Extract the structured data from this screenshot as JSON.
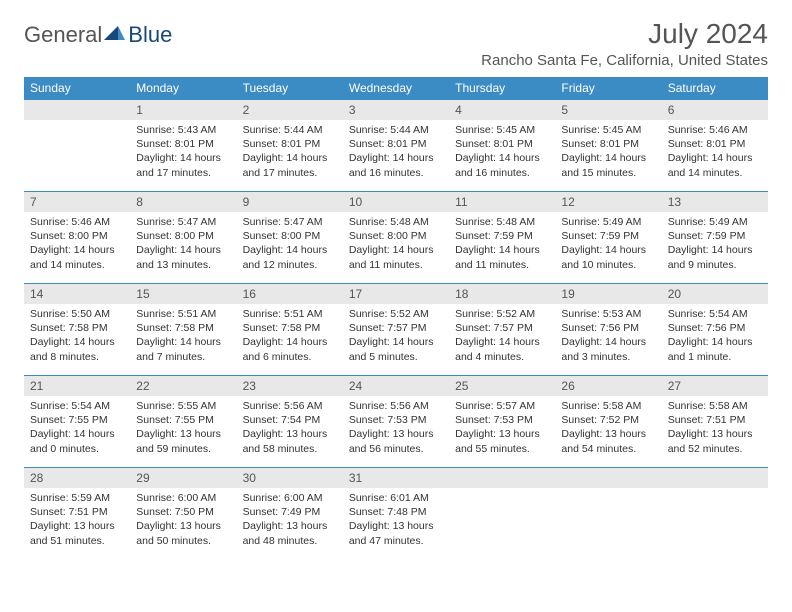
{
  "logo": {
    "text1": "General",
    "text2": "Blue"
  },
  "title": "July 2024",
  "location": "Rancho Santa Fe, California, United States",
  "colors": {
    "header_bg": "#3b8bc4",
    "header_text": "#ffffff",
    "daynum_bg": "#e8e8e8",
    "border": "#3b8bc4",
    "text": "#333333"
  },
  "weekdays": [
    "Sunday",
    "Monday",
    "Tuesday",
    "Wednesday",
    "Thursday",
    "Friday",
    "Saturday"
  ],
  "grid": [
    [
      {
        "n": "",
        "t": ""
      },
      {
        "n": "1",
        "t": "Sunrise: 5:43 AM\nSunset: 8:01 PM\nDaylight: 14 hours and 17 minutes."
      },
      {
        "n": "2",
        "t": "Sunrise: 5:44 AM\nSunset: 8:01 PM\nDaylight: 14 hours and 17 minutes."
      },
      {
        "n": "3",
        "t": "Sunrise: 5:44 AM\nSunset: 8:01 PM\nDaylight: 14 hours and 16 minutes."
      },
      {
        "n": "4",
        "t": "Sunrise: 5:45 AM\nSunset: 8:01 PM\nDaylight: 14 hours and 16 minutes."
      },
      {
        "n": "5",
        "t": "Sunrise: 5:45 AM\nSunset: 8:01 PM\nDaylight: 14 hours and 15 minutes."
      },
      {
        "n": "6",
        "t": "Sunrise: 5:46 AM\nSunset: 8:01 PM\nDaylight: 14 hours and 14 minutes."
      }
    ],
    [
      {
        "n": "7",
        "t": "Sunrise: 5:46 AM\nSunset: 8:00 PM\nDaylight: 14 hours and 14 minutes."
      },
      {
        "n": "8",
        "t": "Sunrise: 5:47 AM\nSunset: 8:00 PM\nDaylight: 14 hours and 13 minutes."
      },
      {
        "n": "9",
        "t": "Sunrise: 5:47 AM\nSunset: 8:00 PM\nDaylight: 14 hours and 12 minutes."
      },
      {
        "n": "10",
        "t": "Sunrise: 5:48 AM\nSunset: 8:00 PM\nDaylight: 14 hours and 11 minutes."
      },
      {
        "n": "11",
        "t": "Sunrise: 5:48 AM\nSunset: 7:59 PM\nDaylight: 14 hours and 11 minutes."
      },
      {
        "n": "12",
        "t": "Sunrise: 5:49 AM\nSunset: 7:59 PM\nDaylight: 14 hours and 10 minutes."
      },
      {
        "n": "13",
        "t": "Sunrise: 5:49 AM\nSunset: 7:59 PM\nDaylight: 14 hours and 9 minutes."
      }
    ],
    [
      {
        "n": "14",
        "t": "Sunrise: 5:50 AM\nSunset: 7:58 PM\nDaylight: 14 hours and 8 minutes."
      },
      {
        "n": "15",
        "t": "Sunrise: 5:51 AM\nSunset: 7:58 PM\nDaylight: 14 hours and 7 minutes."
      },
      {
        "n": "16",
        "t": "Sunrise: 5:51 AM\nSunset: 7:58 PM\nDaylight: 14 hours and 6 minutes."
      },
      {
        "n": "17",
        "t": "Sunrise: 5:52 AM\nSunset: 7:57 PM\nDaylight: 14 hours and 5 minutes."
      },
      {
        "n": "18",
        "t": "Sunrise: 5:52 AM\nSunset: 7:57 PM\nDaylight: 14 hours and 4 minutes."
      },
      {
        "n": "19",
        "t": "Sunrise: 5:53 AM\nSunset: 7:56 PM\nDaylight: 14 hours and 3 minutes."
      },
      {
        "n": "20",
        "t": "Sunrise: 5:54 AM\nSunset: 7:56 PM\nDaylight: 14 hours and 1 minute."
      }
    ],
    [
      {
        "n": "21",
        "t": "Sunrise: 5:54 AM\nSunset: 7:55 PM\nDaylight: 14 hours and 0 minutes."
      },
      {
        "n": "22",
        "t": "Sunrise: 5:55 AM\nSunset: 7:55 PM\nDaylight: 13 hours and 59 minutes."
      },
      {
        "n": "23",
        "t": "Sunrise: 5:56 AM\nSunset: 7:54 PM\nDaylight: 13 hours and 58 minutes."
      },
      {
        "n": "24",
        "t": "Sunrise: 5:56 AM\nSunset: 7:53 PM\nDaylight: 13 hours and 56 minutes."
      },
      {
        "n": "25",
        "t": "Sunrise: 5:57 AM\nSunset: 7:53 PM\nDaylight: 13 hours and 55 minutes."
      },
      {
        "n": "26",
        "t": "Sunrise: 5:58 AM\nSunset: 7:52 PM\nDaylight: 13 hours and 54 minutes."
      },
      {
        "n": "27",
        "t": "Sunrise: 5:58 AM\nSunset: 7:51 PM\nDaylight: 13 hours and 52 minutes."
      }
    ],
    [
      {
        "n": "28",
        "t": "Sunrise: 5:59 AM\nSunset: 7:51 PM\nDaylight: 13 hours and 51 minutes."
      },
      {
        "n": "29",
        "t": "Sunrise: 6:00 AM\nSunset: 7:50 PM\nDaylight: 13 hours and 50 minutes."
      },
      {
        "n": "30",
        "t": "Sunrise: 6:00 AM\nSunset: 7:49 PM\nDaylight: 13 hours and 48 minutes."
      },
      {
        "n": "31",
        "t": "Sunrise: 6:01 AM\nSunset: 7:48 PM\nDaylight: 13 hours and 47 minutes."
      },
      {
        "n": "",
        "t": ""
      },
      {
        "n": "",
        "t": ""
      },
      {
        "n": "",
        "t": ""
      }
    ]
  ]
}
